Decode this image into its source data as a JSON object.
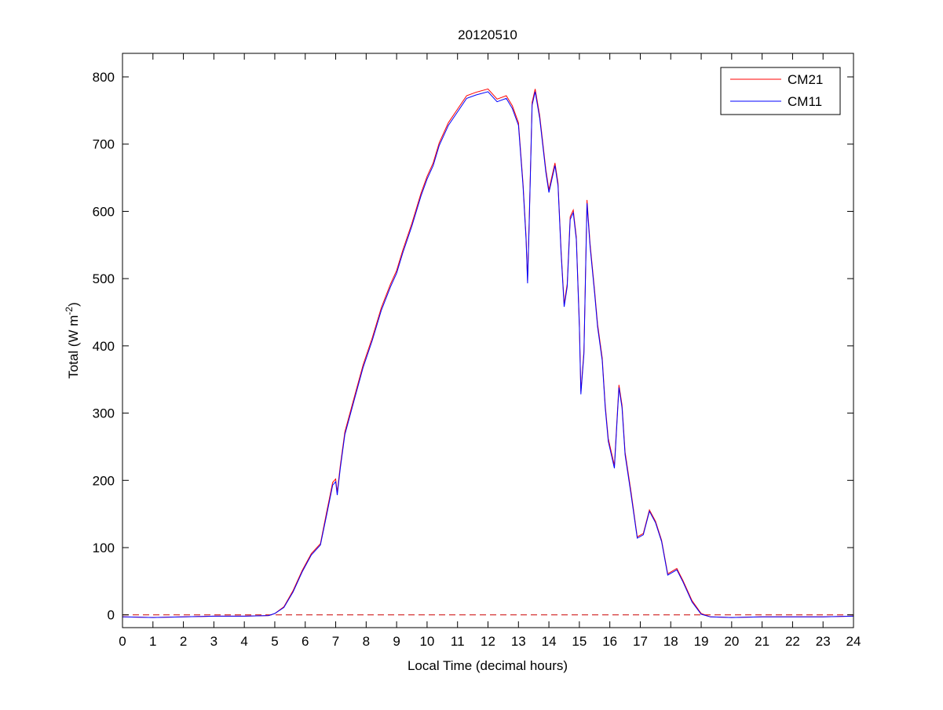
{
  "chart_data": {
    "type": "line",
    "title": "20120510",
    "xlabel": "Local Time (decimal hours)",
    "ylabel": "Total (W m-2)",
    "ylabel_parts": {
      "main": "Total (W m",
      "sup": "-2",
      "end": ")"
    },
    "xlim": [
      0,
      24
    ],
    "ylim": [
      -19,
      835
    ],
    "xticks": [
      0,
      1,
      2,
      3,
      4,
      5,
      6,
      7,
      8,
      9,
      10,
      11,
      12,
      13,
      14,
      15,
      16,
      17,
      18,
      19,
      20,
      21,
      22,
      23,
      24
    ],
    "yticks": [
      0,
      100,
      200,
      300,
      400,
      500,
      600,
      700,
      800
    ],
    "grid": false,
    "legend_placement": "top-right",
    "reference_line": {
      "y": 0,
      "style": "dashed",
      "color": "#cc0000"
    },
    "x": [
      0,
      1,
      2,
      3,
      4,
      4.8,
      5,
      5.3,
      5.6,
      5.9,
      6.2,
      6.5,
      6.7,
      6.9,
      7.0,
      7.05,
      7.15,
      7.3,
      7.6,
      7.9,
      8.2,
      8.5,
      8.8,
      9.0,
      9.2,
      9.5,
      9.8,
      10.0,
      10.2,
      10.4,
      10.7,
      11.0,
      11.3,
      11.6,
      12.0,
      12.3,
      12.6,
      12.8,
      13.0,
      13.15,
      13.25,
      13.3,
      13.35,
      13.45,
      13.55,
      13.7,
      13.9,
      14.0,
      14.2,
      14.3,
      14.4,
      14.5,
      14.6,
      14.7,
      14.8,
      14.9,
      15.0,
      15.05,
      15.15,
      15.25,
      15.35,
      15.5,
      15.6,
      15.75,
      15.85,
      15.95,
      16.05,
      16.15,
      16.3,
      16.4,
      16.5,
      16.7,
      16.9,
      17.1,
      17.3,
      17.5,
      17.7,
      17.9,
      18.2,
      18.4,
      18.7,
      19.0,
      19.3,
      20,
      21,
      22,
      23,
      24
    ],
    "series": [
      {
        "name": "CM21",
        "color": "#ff0000",
        "values": [
          -3,
          -4,
          -3,
          -2,
          -2,
          -1,
          2,
          12,
          36,
          66,
          91,
          106,
          152,
          197,
          202,
          182,
          222,
          272,
          322,
          372,
          412,
          457,
          492,
          512,
          542,
          582,
          627,
          652,
          672,
          702,
          732,
          752,
          772,
          777,
          782,
          767,
          772,
          757,
          732,
          642,
          562,
          497,
          582,
          762,
          782,
          742,
          662,
          632,
          672,
          642,
          542,
          462,
          492,
          592,
          602,
          562,
          432,
          332,
          392,
          617,
          552,
          482,
          432,
          382,
          312,
          262,
          242,
          222,
          342,
          312,
          242,
          182,
          116,
          121,
          156,
          139,
          111,
          61,
          69,
          51,
          21,
          2,
          -3,
          -4,
          -3,
          -3,
          -3,
          -2
        ]
      },
      {
        "name": "CM11",
        "color": "#0000ff",
        "values": [
          -3,
          -4,
          -3,
          -2,
          -2,
          -1,
          2,
          11,
          34,
          64,
          89,
          104,
          148,
          193,
          198,
          178,
          218,
          268,
          318,
          368,
          408,
          453,
          488,
          508,
          538,
          578,
          623,
          648,
          668,
          698,
          728,
          748,
          768,
          773,
          778,
          763,
          768,
          753,
          728,
          638,
          558,
          493,
          578,
          758,
          778,
          738,
          658,
          628,
          668,
          638,
          538,
          458,
          488,
          588,
          598,
          558,
          428,
          328,
          388,
          612,
          548,
          478,
          428,
          378,
          308,
          258,
          238,
          218,
          338,
          308,
          238,
          178,
          114,
          119,
          154,
          137,
          109,
          59,
          67,
          49,
          19,
          1,
          -3,
          -4,
          -3,
          -3,
          -3,
          -2
        ]
      }
    ]
  }
}
